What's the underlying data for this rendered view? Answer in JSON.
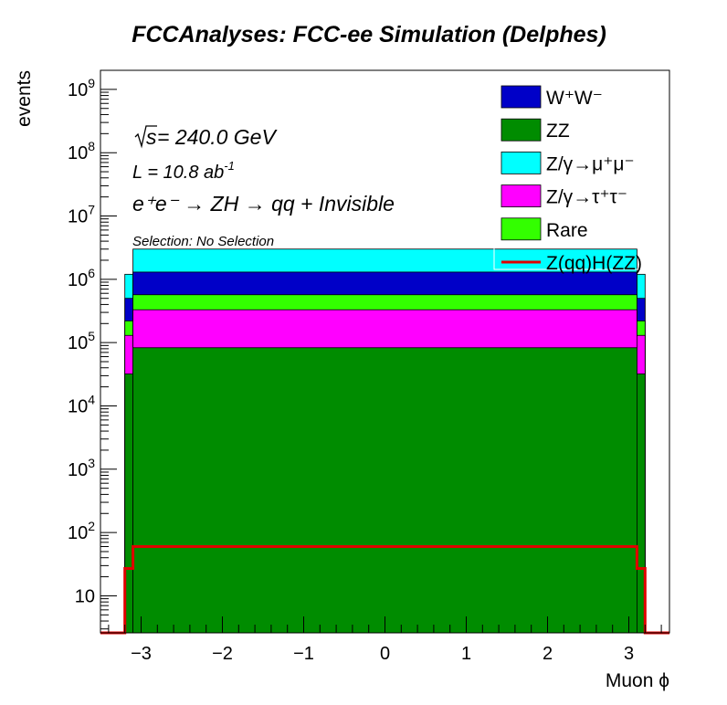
{
  "chart_data": {
    "type": "area",
    "title": "FCCAnalyses: FCC-ee Simulation (Delphes)",
    "xlabel": "Muon ϕ",
    "ylabel": "events",
    "xlim": [
      -3.5,
      3.5
    ],
    "ylim": [
      2.6,
      2000000000
    ],
    "yscale": "log",
    "x_ticks": [
      "−3",
      "−2",
      "−1",
      "0",
      "1",
      "2",
      "3"
    ],
    "x_tick_values": [
      -3,
      -2,
      -1,
      0,
      1,
      2,
      3
    ],
    "y_tick_labels": [
      {
        "base": "10",
        "exp": "",
        "value": 10
      },
      {
        "base": "10",
        "exp": "2",
        "value": 100
      },
      {
        "base": "10",
        "exp": "3",
        "value": 1000
      },
      {
        "base": "10",
        "exp": "4",
        "value": 10000
      },
      {
        "base": "10",
        "exp": "5",
        "value": 100000
      },
      {
        "base": "10",
        "exp": "6",
        "value": 1000000
      },
      {
        "base": "10",
        "exp": "7",
        "value": 10000000
      },
      {
        "base": "10",
        "exp": "8",
        "value": 100000000
      },
      {
        "base": "10",
        "exp": "9",
        "value": 1000000000
      }
    ],
    "annotations": {
      "sqrt_s": "s",
      "energy": " = 240.0 GeV",
      "lumi": "L = 10.8 ab",
      "lumi_exp": "-1",
      "process": "e⁺e⁻ → ZH → qq + Invisible",
      "selection": "Selection: No Selection"
    },
    "legend": {
      "placement": "top-right",
      "entries": [
        {
          "key": "ww",
          "label": "W⁺W⁻",
          "color": "#0000c8",
          "style": "fill"
        },
        {
          "key": "zz",
          "label": "ZZ",
          "color": "#008c00",
          "style": "fill"
        },
        {
          "key": "zmumu",
          "label": "Z/γ→μ⁺μ⁻",
          "color": "#00ffff",
          "style": "fill"
        },
        {
          "key": "ztautau",
          "label": "Z/γ→τ⁺τ⁻",
          "color": "#ff00ff",
          "style": "fill"
        },
        {
          "key": "rare",
          "label": "Rare",
          "color": "#33ff00",
          "style": "fill"
        },
        {
          "key": "signal",
          "label": "Z(qq)H(ZZ)",
          "color": "#e00000",
          "style": "line"
        }
      ]
    },
    "bins": {
      "edges": [
        -3.2,
        -3.1,
        3.1,
        3.2
      ],
      "description": "edge bins [-3.2,-3.1] and [3.1,3.2]; central region [-3.1,3.1]"
    },
    "stack": [
      {
        "name": "ZZ",
        "color": "#008c00",
        "edge_value": 32000,
        "center_value": 83000
      },
      {
        "name": "Z/γ→τ⁺τ⁻",
        "color": "#ff00ff",
        "edge_value": 130000,
        "center_value": 330000
      },
      {
        "name": "Rare",
        "color": "#33ff00",
        "edge_value": 220000,
        "center_value": 570000
      },
      {
        "name": "W⁺W⁻",
        "color": "#0000c8",
        "edge_value": 500000,
        "center_value": 1300000
      },
      {
        "name": "Z/γ→μ⁺μ⁻",
        "color": "#00ffff",
        "edge_value": 1200000,
        "center_value": 3000000
      }
    ],
    "signal": {
      "name": "Z(qq)H(ZZ)",
      "color": "#e00000",
      "edge_value": 27,
      "center_value": 60
    },
    "grid": false
  }
}
